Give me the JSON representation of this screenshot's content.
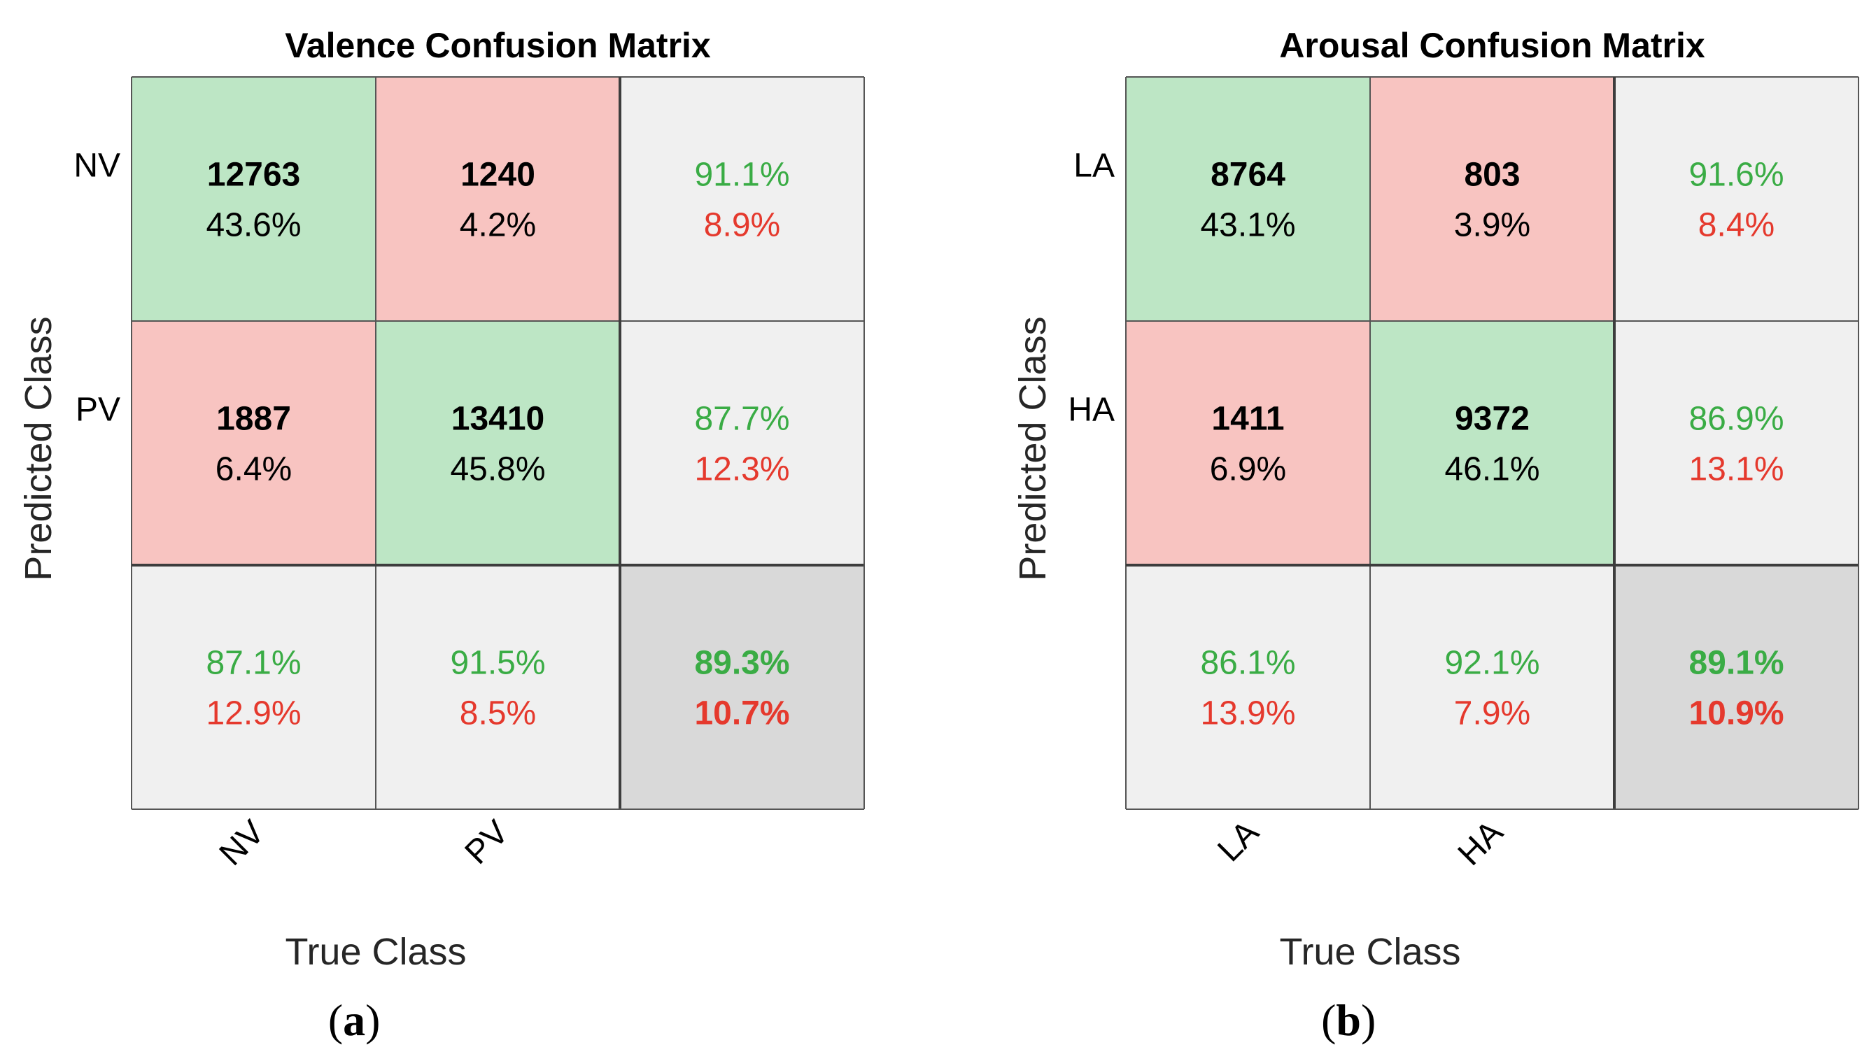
{
  "chart_data": [
    {
      "type": "heatmap",
      "title": "Valence Confusion Matrix",
      "caption": "(a)",
      "xlabel": "True Class",
      "ylabel": "Predicted Class",
      "row_labels": [
        "NV",
        "PV"
      ],
      "col_labels": [
        "NV",
        "PV"
      ],
      "counts": [
        [
          12763,
          1240
        ],
        [
          1887,
          13410
        ]
      ],
      "cell_percents": [
        [
          "43.6%",
          "4.2%"
        ],
        [
          "6.4%",
          "45.8%"
        ]
      ],
      "row_summary": [
        {
          "correct": "91.1%",
          "incorrect": "8.9%"
        },
        {
          "correct": "87.7%",
          "incorrect": "12.3%"
        }
      ],
      "col_summary": [
        {
          "correct": "87.1%",
          "incorrect": "12.9%"
        },
        {
          "correct": "91.5%",
          "incorrect": "8.5%"
        }
      ],
      "overall": {
        "correct": "89.3%",
        "incorrect": "10.7%"
      }
    },
    {
      "type": "heatmap",
      "title": "Arousal Confusion Matrix",
      "caption": "(b)",
      "xlabel": "True Class",
      "ylabel": "Predicted Class",
      "row_labels": [
        "LA",
        "HA"
      ],
      "col_labels": [
        "LA",
        "HA"
      ],
      "counts": [
        [
          8764,
          803
        ],
        [
          1411,
          9372
        ]
      ],
      "cell_percents": [
        [
          "43.1%",
          "3.9%"
        ],
        [
          "6.9%",
          "46.1%"
        ]
      ],
      "row_summary": [
        {
          "correct": "91.6%",
          "incorrect": "8.4%"
        },
        {
          "correct": "86.9%",
          "incorrect": "13.1%"
        }
      ],
      "col_summary": [
        {
          "correct": "86.1%",
          "incorrect": "13.9%"
        },
        {
          "correct": "92.1%",
          "incorrect": "7.9%"
        }
      ],
      "overall": {
        "correct": "89.1%",
        "incorrect": "10.9%"
      }
    }
  ],
  "colors": {
    "correct_cell": "#bde6c5",
    "incorrect_cell": "#f8c4c1",
    "summary_cell": "#f0f0f0",
    "overall_cell": "#d9d9d9",
    "green_text": "#3aac45",
    "red_text": "#e5392d",
    "grid": "#555555",
    "thick_grid": "#3d3d3d"
  }
}
